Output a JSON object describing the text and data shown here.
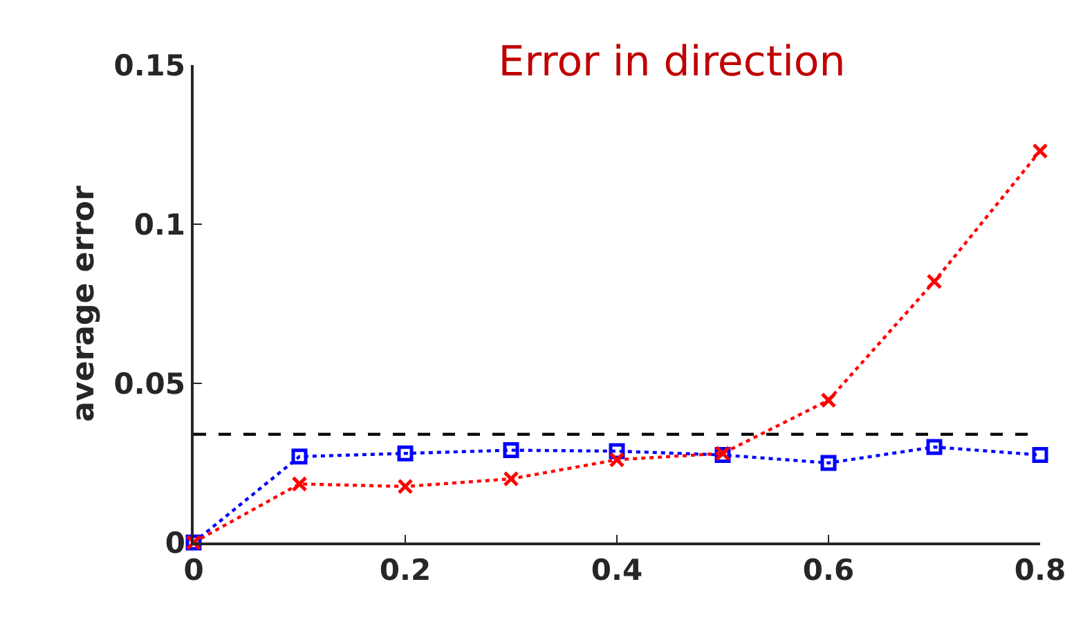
{
  "chart_data": {
    "type": "line",
    "title": "Error in direction",
    "ylabel": "average error",
    "x": [
      0,
      0.1,
      0.2,
      0.3,
      0.4,
      0.5,
      0.6,
      0.7,
      0.8
    ],
    "series": [
      {
        "color": "#0000ff",
        "marker": "square",
        "values": [
          0,
          0.027,
          0.028,
          0.029,
          0.0287,
          0.0275,
          0.025,
          0.03,
          0.0275
        ]
      },
      {
        "color": "#ff0000",
        "marker": "cross",
        "values": [
          0,
          0.0184,
          0.0176,
          0.02,
          0.026,
          0.028,
          0.0447,
          0.082,
          0.123
        ]
      }
    ],
    "ref_lines": [
      {
        "axis": "y",
        "value": 0.034,
        "color": "#000000",
        "line_style": "dashed"
      }
    ],
    "line_style": "dotted",
    "xlim": [
      0,
      0.8
    ],
    "xticks": [
      0,
      0.2,
      0.4,
      0.6,
      0.8
    ],
    "ylim": [
      0,
      0.15
    ],
    "yticks": [
      0,
      0.05,
      0.1,
      0.15
    ]
  }
}
